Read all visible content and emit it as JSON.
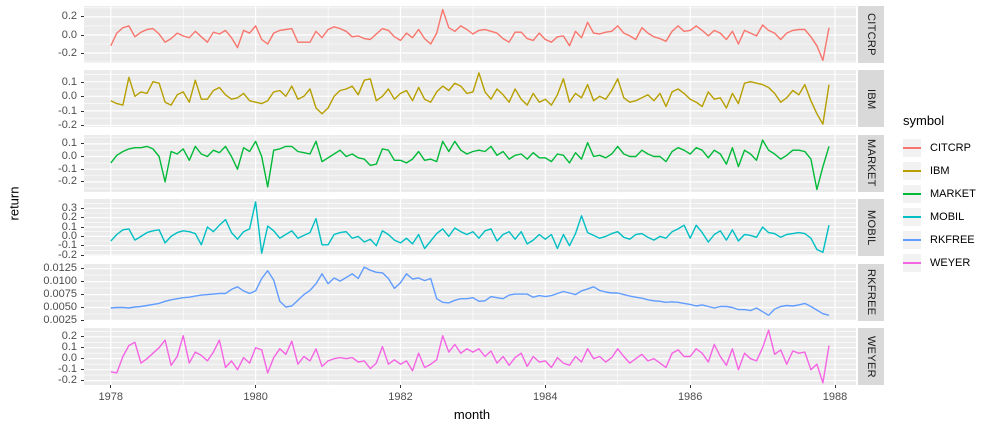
{
  "style": {
    "background": "#FFFFFF",
    "panel_bg": "#EBEBEB",
    "grid_color": "#FFFFFF",
    "strip_bg": "#D9D9D9",
    "strip_text": "#1A1A1A",
    "tick_text": "#4D4D4D",
    "tick_mark": "#333333",
    "axis_title": "#000000",
    "legend_key_bg": "#F2F2F2"
  },
  "chart_data": {
    "type": "line",
    "title": "",
    "xlabel": "month",
    "ylabel": "return",
    "legend_title": "symbol",
    "legend_position": "right",
    "grid": true,
    "facet_variable": "symbol",
    "x_start": 1978.0,
    "x_step": 0.0833333,
    "x_note": "monthly samples Jan 1978 - Dec 1987",
    "xlim": [
      1977.63,
      1988.29
    ],
    "x_ticks": [
      {
        "value": 1978,
        "label": "1978"
      },
      {
        "value": 1980,
        "label": "1980"
      },
      {
        "value": 1982,
        "label": "1982"
      },
      {
        "value": 1984,
        "label": "1984"
      },
      {
        "value": 1986,
        "label": "1986"
      },
      {
        "value": 1988,
        "label": "1988"
      }
    ],
    "x_minor": [
      1979,
      1981,
      1983,
      1985,
      1987
    ],
    "facets": [
      {
        "name": "CITCRP",
        "color": "#F8766D",
        "ylim": [
          -0.31,
          0.32
        ],
        "y_ticks": [
          {
            "value": 0.2,
            "label": "0.2"
          },
          {
            "value": 0.0,
            "label": "0.0"
          },
          {
            "value": -0.2,
            "label": "-0.2"
          }
        ],
        "y_minor": [
          0.3,
          0.1,
          -0.1,
          -0.3
        ],
        "values": [
          -0.12,
          0.02,
          0.08,
          0.1,
          -0.02,
          0.03,
          0.06,
          0.07,
          0.01,
          -0.08,
          -0.04,
          0.02,
          -0.01,
          -0.03,
          0.04,
          -0.02,
          -0.08,
          0.03,
          0.01,
          0.05,
          -0.03,
          -0.14,
          0.05,
          0.02,
          0.1,
          -0.05,
          -0.1,
          0.02,
          0.05,
          0.06,
          0.07,
          -0.08,
          -0.08,
          -0.08,
          0.04,
          -0.03,
          0.06,
          0.09,
          0.07,
          0.04,
          -0.02,
          -0.01,
          -0.04,
          -0.05,
          0.01,
          0.07,
          0.05,
          -0.02,
          -0.06,
          0.02,
          -0.03,
          0.06,
          -0.04,
          -0.1,
          0.02,
          0.28,
          0.08,
          0.04,
          0.1,
          0.06,
          0.01,
          0.05,
          0.06,
          0.04,
          0.02,
          -0.04,
          -0.08,
          0.03,
          0.03,
          -0.04,
          -0.06,
          0.02,
          -0.05,
          -0.08,
          -0.02,
          -0.01,
          -0.12,
          0.04,
          -0.03,
          0.14,
          0.02,
          0.01,
          0.03,
          0.04,
          0.1,
          0.02,
          -0.01,
          -0.05,
          0.08,
          0.02,
          -0.02,
          -0.04,
          -0.07,
          0.04,
          0.1,
          0.04,
          0.05,
          0.1,
          0.05,
          -0.01,
          0.05,
          0.02,
          -0.05,
          0.04,
          -0.1,
          0.05,
          0.02,
          -0.01,
          0.11,
          0.05,
          0.02,
          -0.05,
          0.02,
          0.05,
          0.06,
          0.06,
          -0.02,
          -0.12,
          -0.28,
          0.08
        ]
      },
      {
        "name": "IBM",
        "color": "#B79F00",
        "ylim": [
          -0.21,
          0.18
        ],
        "y_ticks": [
          {
            "value": 0.1,
            "label": "0.1"
          },
          {
            "value": 0.0,
            "label": "0.0"
          },
          {
            "value": -0.1,
            "label": "-0.1"
          },
          {
            "value": -0.2,
            "label": "-0.2"
          }
        ],
        "y_minor": [
          0.15,
          0.05,
          -0.05,
          -0.15
        ],
        "values": [
          -0.03,
          -0.05,
          -0.06,
          0.13,
          0.0,
          0.03,
          0.02,
          0.1,
          0.09,
          -0.04,
          -0.06,
          0.01,
          0.03,
          -0.04,
          0.11,
          -0.02,
          -0.02,
          0.04,
          0.06,
          0.01,
          -0.02,
          -0.01,
          0.02,
          -0.03,
          -0.04,
          -0.05,
          -0.03,
          0.03,
          0.04,
          0.0,
          0.07,
          -0.02,
          0.0,
          0.05,
          -0.08,
          -0.12,
          -0.08,
          0.0,
          0.04,
          0.05,
          0.07,
          0.01,
          0.11,
          0.12,
          -0.03,
          0.0,
          0.05,
          -0.02,
          0.02,
          0.04,
          -0.03,
          0.06,
          -0.02,
          -0.04,
          0.03,
          0.07,
          0.04,
          0.09,
          0.07,
          0.02,
          0.03,
          0.16,
          0.03,
          -0.02,
          0.05,
          0.01,
          -0.04,
          0.05,
          -0.02,
          -0.06,
          0.02,
          -0.04,
          -0.02,
          -0.06,
          0.01,
          0.12,
          -0.04,
          0.02,
          -0.01,
          0.08,
          -0.03,
          0.0,
          -0.02,
          0.04,
          0.12,
          -0.01,
          -0.04,
          -0.03,
          -0.01,
          0.01,
          -0.03,
          0.02,
          -0.07,
          0.03,
          0.05,
          0.02,
          -0.02,
          -0.04,
          -0.07,
          0.03,
          -0.02,
          -0.01,
          -0.08,
          0.02,
          -0.05,
          0.09,
          0.1,
          0.09,
          0.08,
          0.06,
          0.02,
          -0.04,
          -0.01,
          0.04,
          0.01,
          0.08,
          -0.03,
          -0.12,
          -0.19,
          0.08
        ]
      },
      {
        "name": "MARKET",
        "color": "#00BA38",
        "ylim": [
          -0.28,
          0.17
        ],
        "y_ticks": [
          {
            "value": 0.1,
            "label": "0.1"
          },
          {
            "value": 0.0,
            "label": "0.0"
          },
          {
            "value": -0.1,
            "label": "-0.1"
          },
          {
            "value": -0.2,
            "label": "-0.2"
          }
        ],
        "y_minor": [
          0.15,
          0.05,
          -0.05,
          -0.15,
          -0.25
        ],
        "values": [
          -0.05,
          0.01,
          0.04,
          0.06,
          0.07,
          0.07,
          0.08,
          0.06,
          0.0,
          -0.2,
          0.04,
          0.02,
          0.06,
          -0.03,
          0.08,
          0.02,
          0.0,
          0.05,
          0.03,
          0.08,
          0.0,
          -0.1,
          0.07,
          0.04,
          0.12,
          0.0,
          -0.24,
          0.05,
          0.06,
          0.08,
          0.08,
          0.04,
          0.03,
          0.02,
          0.12,
          -0.04,
          -0.01,
          0.02,
          0.05,
          0.0,
          0.02,
          -0.01,
          -0.02,
          -0.07,
          -0.06,
          0.06,
          0.05,
          -0.03,
          -0.03,
          -0.05,
          -0.02,
          0.04,
          -0.03,
          -0.02,
          -0.04,
          0.12,
          0.04,
          0.12,
          0.05,
          0.02,
          0.04,
          0.05,
          0.04,
          0.08,
          0.01,
          0.04,
          -0.02,
          0.01,
          0.02,
          -0.02,
          0.03,
          -0.01,
          -0.01,
          -0.04,
          0.02,
          0.01,
          -0.05,
          0.03,
          -0.02,
          0.11,
          0.0,
          0.01,
          -0.01,
          0.02,
          0.08,
          0.02,
          0.0,
          0.0,
          0.05,
          0.02,
          0.0,
          0.0,
          -0.04,
          0.04,
          0.07,
          0.05,
          0.02,
          0.07,
          0.05,
          -0.01,
          0.05,
          0.02,
          -0.06,
          0.07,
          -0.08,
          0.05,
          0.02,
          -0.03,
          0.13,
          0.05,
          0.02,
          -0.02,
          0.01,
          0.05,
          0.05,
          0.04,
          -0.02,
          -0.26,
          -0.08,
          0.08
        ]
      },
      {
        "name": "MOBIL",
        "color": "#00BFC4",
        "ylim": [
          -0.21,
          0.4
        ],
        "y_ticks": [
          {
            "value": 0.3,
            "label": "0.3"
          },
          {
            "value": 0.2,
            "label": "0.2"
          },
          {
            "value": 0.1,
            "label": "0.1"
          },
          {
            "value": 0.0,
            "label": "0.0"
          },
          {
            "value": -0.1,
            "label": "-0.1"
          },
          {
            "value": -0.2,
            "label": "-0.2"
          }
        ],
        "y_minor": [
          0.35,
          0.25,
          0.15,
          0.05,
          -0.05,
          -0.15
        ],
        "values": [
          -0.05,
          0.02,
          0.07,
          0.08,
          -0.04,
          0.0,
          0.04,
          0.06,
          0.07,
          -0.07,
          0.0,
          0.04,
          0.06,
          0.05,
          0.03,
          -0.09,
          0.1,
          0.05,
          0.12,
          0.18,
          0.04,
          -0.03,
          0.05,
          0.08,
          0.37,
          -0.18,
          0.11,
          0.06,
          -0.02,
          0.02,
          0.06,
          -0.02,
          0.01,
          0.04,
          0.19,
          -0.09,
          -0.09,
          0.02,
          0.04,
          0.05,
          -0.02,
          0.0,
          -0.06,
          -0.03,
          -0.1,
          0.06,
          0.02,
          -0.04,
          -0.07,
          -0.02,
          -0.08,
          0.02,
          -0.13,
          -0.05,
          0.03,
          0.08,
          0.0,
          0.09,
          0.05,
          0.02,
          0.05,
          -0.02,
          0.06,
          0.08,
          -0.05,
          0.02,
          0.05,
          -0.03,
          0.05,
          -0.08,
          -0.04,
          0.02,
          -0.03,
          0.02,
          -0.13,
          0.02,
          -0.1,
          0.03,
          0.22,
          0.04,
          0.01,
          -0.02,
          0.0,
          0.03,
          0.05,
          -0.01,
          -0.03,
          0.02,
          0.03,
          -0.01,
          -0.04,
          0.0,
          -0.02,
          0.05,
          0.08,
          0.12,
          -0.02,
          0.12,
          0.04,
          -0.06,
          0.02,
          0.06,
          -0.04,
          0.07,
          -0.05,
          0.02,
          0.01,
          -0.01,
          0.1,
          0.04,
          0.03,
          -0.01,
          0.02,
          0.03,
          0.04,
          0.03,
          -0.02,
          -0.14,
          -0.17,
          0.12
        ]
      },
      {
        "name": "RKFREE",
        "color": "#619CFF",
        "ylim": [
          0.0024,
          0.0134
        ],
        "y_ticks": [
          {
            "value": 0.0125,
            "label": "0.0125"
          },
          {
            "value": 0.01,
            "label": "0.0100"
          },
          {
            "value": 0.0075,
            "label": "0.0075"
          },
          {
            "value": 0.005,
            "label": "0.0050"
          },
          {
            "value": 0.0025,
            "label": "0.0025"
          }
        ],
        "y_minor": [
          0.01125,
          0.00875,
          0.00625,
          0.00375
        ],
        "values": [
          0.0049,
          0.005,
          0.005,
          0.0049,
          0.0051,
          0.0052,
          0.0054,
          0.0056,
          0.0058,
          0.0062,
          0.0065,
          0.0067,
          0.0069,
          0.007,
          0.0072,
          0.0074,
          0.0075,
          0.0076,
          0.0077,
          0.0077,
          0.0085,
          0.009,
          0.0082,
          0.0077,
          0.0082,
          0.0106,
          0.0121,
          0.0103,
          0.0062,
          0.0051,
          0.0053,
          0.0064,
          0.0075,
          0.0083,
          0.0096,
          0.0115,
          0.0096,
          0.0107,
          0.0101,
          0.0108,
          0.0115,
          0.0106,
          0.0128,
          0.0122,
          0.0118,
          0.0117,
          0.0106,
          0.0087,
          0.0098,
          0.0115,
          0.0105,
          0.0107,
          0.0102,
          0.0106,
          0.0067,
          0.006,
          0.0059,
          0.0064,
          0.0067,
          0.0067,
          0.0069,
          0.0062,
          0.0063,
          0.0071,
          0.0069,
          0.0067,
          0.0074,
          0.0076,
          0.0076,
          0.0076,
          0.007,
          0.0073,
          0.0071,
          0.0073,
          0.0077,
          0.0081,
          0.0078,
          0.0075,
          0.0082,
          0.0086,
          0.009,
          0.0083,
          0.008,
          0.0078,
          0.0078,
          0.0075,
          0.0072,
          0.007,
          0.0068,
          0.0065,
          0.0063,
          0.0062,
          0.006,
          0.0061,
          0.006,
          0.0058,
          0.0056,
          0.0053,
          0.0055,
          0.0052,
          0.0049,
          0.0052,
          0.0052,
          0.005,
          0.0046,
          0.0046,
          0.0044,
          0.0049,
          0.0042,
          0.0035,
          0.0047,
          0.0052,
          0.0054,
          0.0053,
          0.0055,
          0.0058,
          0.0052,
          0.0045,
          0.0038,
          0.0035
        ]
      },
      {
        "name": "WEYER",
        "color": "#F564E3",
        "ylim": [
          -0.24,
          0.28
        ],
        "y_ticks": [
          {
            "value": 0.2,
            "label": "0.2"
          },
          {
            "value": 0.1,
            "label": "0.1"
          },
          {
            "value": 0.0,
            "label": "0.0"
          },
          {
            "value": -0.1,
            "label": "-0.1"
          },
          {
            "value": -0.2,
            "label": "-0.2"
          }
        ],
        "y_minor": [
          0.25,
          0.15,
          0.05,
          -0.05,
          -0.15
        ],
        "values": [
          -0.12,
          -0.13,
          0.02,
          0.12,
          0.15,
          -0.04,
          0.0,
          0.05,
          0.1,
          0.17,
          -0.06,
          0.02,
          0.21,
          -0.04,
          0.06,
          0.03,
          -0.02,
          0.06,
          0.17,
          -0.08,
          -0.02,
          -0.1,
          0.01,
          -0.04,
          0.1,
          0.08,
          -0.13,
          0.01,
          0.09,
          0.04,
          0.16,
          -0.05,
          0.02,
          -0.02,
          0.09,
          -0.07,
          -0.02,
          0.0,
          0.01,
          0.0,
          0.01,
          -0.03,
          -0.02,
          -0.09,
          -0.04,
          0.11,
          -0.05,
          -0.01,
          -0.05,
          -0.02,
          -0.11,
          0.05,
          -0.08,
          -0.05,
          -0.01,
          0.21,
          0.06,
          0.13,
          0.05,
          0.09,
          0.06,
          0.09,
          0.02,
          0.07,
          -0.04,
          0.02,
          -0.06,
          0.01,
          0.05,
          -0.07,
          0.02,
          -0.03,
          -0.02,
          -0.08,
          0.01,
          -0.04,
          -0.06,
          0.02,
          -0.03,
          0.09,
          0.0,
          0.02,
          -0.03,
          0.01,
          0.09,
          0.02,
          -0.04,
          0.0,
          0.04,
          -0.02,
          0.0,
          -0.04,
          -0.08,
          0.05,
          0.08,
          0.02,
          0.02,
          0.09,
          0.05,
          -0.03,
          0.13,
          0.02,
          -0.06,
          0.09,
          -0.1,
          0.05,
          0.0,
          -0.02,
          0.1,
          0.26,
          0.04,
          0.08,
          -0.05,
          0.07,
          0.05,
          0.06,
          -0.1,
          -0.05,
          -0.22,
          0.12
        ]
      }
    ]
  }
}
